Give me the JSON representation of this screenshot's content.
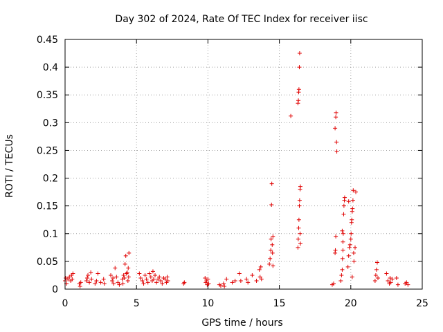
{
  "chart_data": {
    "type": "scatter",
    "title": "Day 302 of 2024, Rate Of TEC Index for receiver iisc",
    "xlabel": "GPS time / hours",
    "ylabel": "ROTI / TECUs",
    "xlim": [
      0,
      25
    ],
    "ylim": [
      0,
      0.45
    ],
    "xticks": [
      0,
      5,
      10,
      15,
      20,
      25
    ],
    "yticks": [
      0,
      0.05,
      0.1,
      0.15,
      0.2,
      0.25,
      0.3,
      0.35,
      0.4,
      0.45
    ],
    "grid": true,
    "marker": "+",
    "color": "#e00000",
    "series": [
      {
        "name": "ROTI",
        "points": [
          [
            0.0,
            0.015
          ],
          [
            0.05,
            0.02
          ],
          [
            0.1,
            0.01
          ],
          [
            0.2,
            0.018
          ],
          [
            0.3,
            0.022
          ],
          [
            0.4,
            0.015
          ],
          [
            0.45,
            0.025
          ],
          [
            0.5,
            0.018
          ],
          [
            0.55,
            0.028
          ],
          [
            1.0,
            0.01
          ],
          [
            1.05,
            0.005
          ],
          [
            1.1,
            0.012
          ],
          [
            1.5,
            0.015
          ],
          [
            1.55,
            0.02
          ],
          [
            1.6,
            0.025
          ],
          [
            1.7,
            0.012
          ],
          [
            1.8,
            0.03
          ],
          [
            1.85,
            0.018
          ],
          [
            2.1,
            0.01
          ],
          [
            2.2,
            0.015
          ],
          [
            2.3,
            0.028
          ],
          [
            2.5,
            0.012
          ],
          [
            2.7,
            0.018
          ],
          [
            2.75,
            0.01
          ],
          [
            3.2,
            0.025
          ],
          [
            3.3,
            0.015
          ],
          [
            3.35,
            0.02
          ],
          [
            3.4,
            0.01
          ],
          [
            3.5,
            0.038
          ],
          [
            3.6,
            0.022
          ],
          [
            3.7,
            0.012
          ],
          [
            3.8,
            0.008
          ],
          [
            4.0,
            0.018
          ],
          [
            4.05,
            0.01
          ],
          [
            4.1,
            0.025
          ],
          [
            4.15,
            0.02
          ],
          [
            4.2,
            0.045
          ],
          [
            4.25,
            0.06
          ],
          [
            4.3,
            0.028
          ],
          [
            4.35,
            0.03
          ],
          [
            4.4,
            0.015
          ],
          [
            4.42,
            0.038
          ],
          [
            4.45,
            0.022
          ],
          [
            4.47,
            0.065
          ],
          [
            5.2,
            0.028
          ],
          [
            5.3,
            0.02
          ],
          [
            5.4,
            0.015
          ],
          [
            5.5,
            0.01
          ],
          [
            5.6,
            0.025
          ],
          [
            5.7,
            0.018
          ],
          [
            5.8,
            0.012
          ],
          [
            5.9,
            0.028
          ],
          [
            6.0,
            0.022
          ],
          [
            6.1,
            0.015
          ],
          [
            6.15,
            0.032
          ],
          [
            6.2,
            0.018
          ],
          [
            6.3,
            0.025
          ],
          [
            6.4,
            0.012
          ],
          [
            6.5,
            0.018
          ],
          [
            6.6,
            0.022
          ],
          [
            6.7,
            0.015
          ],
          [
            6.8,
            0.01
          ],
          [
            6.9,
            0.02
          ],
          [
            7.0,
            0.018
          ],
          [
            7.1,
            0.012
          ],
          [
            7.15,
            0.022
          ],
          [
            7.2,
            0.015
          ],
          [
            8.3,
            0.01
          ],
          [
            8.35,
            0.012
          ],
          [
            9.8,
            0.02
          ],
          [
            9.85,
            0.012
          ],
          [
            9.9,
            0.015
          ],
          [
            9.95,
            0.008
          ],
          [
            10.0,
            0.018
          ],
          [
            10.05,
            0.01
          ],
          [
            10.8,
            0.008
          ],
          [
            10.9,
            0.006
          ],
          [
            11.1,
            0.01
          ],
          [
            11.15,
            0.005
          ],
          [
            11.3,
            0.018
          ],
          [
            11.7,
            0.012
          ],
          [
            11.9,
            0.015
          ],
          [
            12.2,
            0.028
          ],
          [
            12.3,
            0.015
          ],
          [
            12.7,
            0.018
          ],
          [
            12.8,
            0.012
          ],
          [
            13.1,
            0.025
          ],
          [
            13.4,
            0.015
          ],
          [
            13.6,
            0.035
          ],
          [
            13.65,
            0.022
          ],
          [
            13.7,
            0.04
          ],
          [
            13.75,
            0.018
          ],
          [
            14.3,
            0.045
          ],
          [
            14.35,
            0.055
          ],
          [
            14.4,
            0.07
          ],
          [
            14.42,
            0.09
          ],
          [
            14.45,
            0.152
          ],
          [
            14.47,
            0.19
          ],
          [
            14.5,
            0.08
          ],
          [
            14.52,
            0.065
          ],
          [
            14.55,
            0.042
          ],
          [
            14.55,
            0.095
          ],
          [
            15.8,
            0.312
          ],
          [
            16.3,
            0.075
          ],
          [
            16.32,
            0.09
          ],
          [
            16.35,
            0.11
          ],
          [
            16.37,
            0.125
          ],
          [
            16.4,
            0.15
          ],
          [
            16.42,
            0.16
          ],
          [
            16.45,
            0.18
          ],
          [
            16.47,
            0.185
          ],
          [
            16.3,
            0.335
          ],
          [
            16.33,
            0.34
          ],
          [
            16.35,
            0.355
          ],
          [
            16.37,
            0.36
          ],
          [
            16.4,
            0.4
          ],
          [
            16.42,
            0.425
          ],
          [
            16.45,
            0.1
          ],
          [
            16.47,
            0.082
          ],
          [
            18.7,
            0.008
          ],
          [
            18.8,
            0.01
          ],
          [
            18.9,
            0.065
          ],
          [
            18.92,
            0.07
          ],
          [
            18.95,
            0.095
          ],
          [
            18.9,
            0.29
          ],
          [
            18.95,
            0.31
          ],
          [
            18.97,
            0.318
          ],
          [
            19.0,
            0.265
          ],
          [
            19.02,
            0.248
          ],
          [
            19.3,
            0.015
          ],
          [
            19.35,
            0.025
          ],
          [
            19.4,
            0.035
          ],
          [
            19.42,
            0.055
          ],
          [
            19.45,
            0.085
          ],
          [
            19.47,
            0.1
          ],
          [
            19.5,
            0.135
          ],
          [
            19.52,
            0.15
          ],
          [
            19.55,
            0.16
          ],
          [
            19.57,
            0.165
          ],
          [
            19.4,
            0.105
          ],
          [
            19.45,
            0.07
          ],
          [
            19.8,
            0.04
          ],
          [
            19.85,
            0.06
          ],
          [
            19.9,
            0.075
          ],
          [
            19.95,
            0.08
          ],
          [
            20.0,
            0.09
          ],
          [
            20.02,
            0.1
          ],
          [
            20.05,
            0.12
          ],
          [
            20.07,
            0.125
          ],
          [
            20.1,
            0.14
          ],
          [
            20.12,
            0.145
          ],
          [
            20.15,
            0.16
          ],
          [
            20.17,
            0.178
          ],
          [
            20.2,
            0.065
          ],
          [
            20.22,
            0.05
          ],
          [
            19.85,
            0.158
          ],
          [
            20.1,
            0.022
          ],
          [
            20.3,
            0.075
          ],
          [
            20.35,
            0.175
          ],
          [
            21.7,
            0.015
          ],
          [
            21.75,
            0.025
          ],
          [
            21.8,
            0.035
          ],
          [
            21.85,
            0.048
          ],
          [
            21.9,
            0.02
          ],
          [
            22.5,
            0.028
          ],
          [
            22.6,
            0.015
          ],
          [
            22.7,
            0.01
          ],
          [
            22.75,
            0.02
          ],
          [
            22.8,
            0.012
          ],
          [
            22.9,
            0.018
          ],
          [
            23.2,
            0.02
          ],
          [
            23.3,
            0.008
          ],
          [
            23.8,
            0.01
          ],
          [
            23.9,
            0.012
          ],
          [
            24.0,
            0.008
          ]
        ]
      }
    ]
  }
}
